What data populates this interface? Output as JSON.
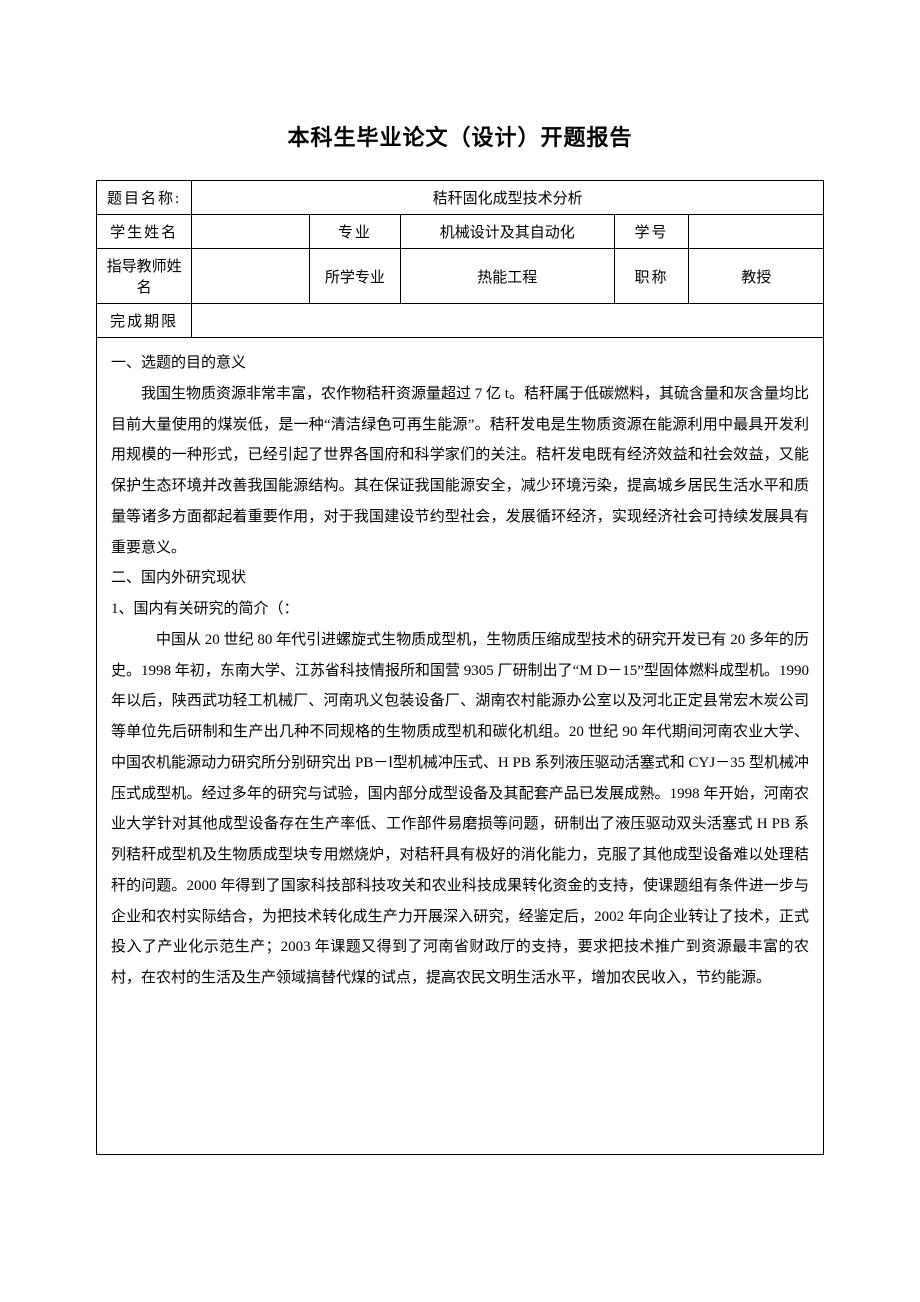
{
  "title": "本科生毕业论文（设计）开题报告",
  "header": {
    "topic_label": "题目名称:",
    "topic_value": "秸秆固化成型技术分析",
    "student_name_label": "学生姓名",
    "student_name_value": "",
    "major_label": "专业",
    "major_value": "机械设计及其自动化",
    "student_id_label": "学号",
    "student_id_value": "",
    "advisor_label": "指导教师姓名",
    "advisor_value": "",
    "advisor_major_label": "所学专业",
    "advisor_major_value": "热能工程",
    "title_rank_label": "职称",
    "title_rank_value": "教授",
    "deadline_label": "完成期限",
    "deadline_value": ""
  },
  "body": {
    "section1_heading": "一、选题的目的意义",
    "section1_para1": "我国生物质资源非常丰富，农作物秸秆资源量超过 7 亿 t。秸秆属于低碳燃料，其硫含量和灰含量均比目前大量使用的煤炭低，是一种“清洁绿色可再生能源”。秸秆发电是生物质资源在能源利用中最具开发利用规模的一种形式，已经引起了世界各国府和科学家们的关注。秸杆发电既有经济效益和社会效益，又能保护生态环境并改善我国能源结构。其在保证我国能源安全，减少环境污染，提高城乡居民生活水平和质量等诸多方面都起着重要作用，对于我国建设节约型社会，发展循环经济，实现经济社会可持续发展具有重要意义。",
    "section2_heading": "二、国内外研究现状",
    "section2_sub1": "1、国内有关研究的简介（：",
    "section2_para1": "中国从 20 世纪 80 年代引进螺旋式生物质成型机，生物质压缩成型技术的研究开发已有 20 多年的历史。1998 年初，东南大学、江苏省科技情报所和国营 9305 厂研制出了“M D－15”型固体燃料成型机。1990 年以后，陕西武功轻工机械厂、河南巩义包装设备厂、湖南农村能源办公室以及河北正定县常宏木炭公司等单位先后研制和生产出几种不同规格的生物质成型机和碳化机组。20 世纪 90 年代期间河南农业大学、中国农机能源动力研究所分别研究出 PB－Ⅰ型机械冲压式、H PB 系列液压驱动活塞式和 CYJ－35 型机械冲压式成型机。经过多年的研究与试验，国内部分成型设备及其配套产品已发展成熟。1998 年开始，河南农业大学针对其他成型设备存在生产率低、工作部件易磨损等问题，研制出了液压驱动双头活塞式 H PB 系列秸秆成型机及生物质成型块专用燃烧炉，对秸秆具有极好的消化能力，克服了其他成型设备难以处理秸秆的问题。2000 年得到了国家科技部科技攻关和农业科技成果转化资金的支持，使课题组有条件进一步与企业和农村实际结合，为把技术转化成生产力开展深入研究，经鉴定后，2002 年向企业转让了技术，正式投入了产业化示范生产；2003 年课题又得到了河南省财政厅的支持，要求把技术推广到资源最丰富的农村，在农村的生活及生产领域搞替代煤的试点，提高农民文明生活水平，增加农民收入，节约能源。"
  },
  "style": {
    "title_fontsize": 22,
    "body_fontsize": 15,
    "line_height": 2.05,
    "border_color": "#000000",
    "bg_color": "#ffffff",
    "text_color": "#000000",
    "column_widths_pct": [
      13.1,
      16.2,
      12.5,
      29.4,
      10.3,
      18.5
    ]
  }
}
